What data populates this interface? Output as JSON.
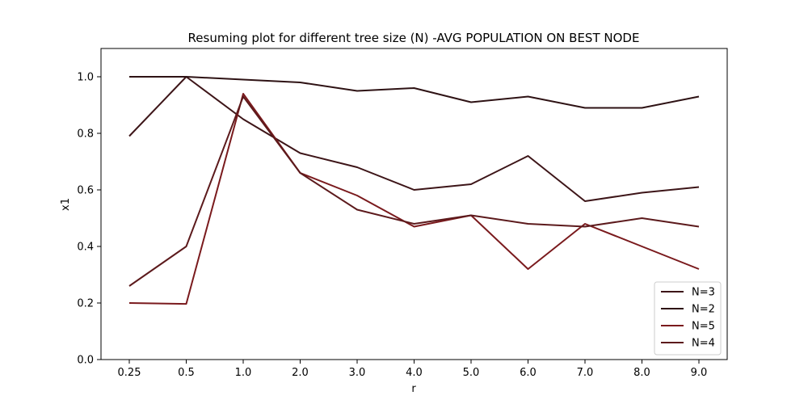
{
  "chart_data": {
    "type": "line",
    "title": "Resuming plot for different tree size (N) -AVG POPULATION ON BEST NODE",
    "xlabel": "r",
    "ylabel": "x1",
    "categories": [
      "0.25",
      "0.5",
      "1.0",
      "2.0",
      "3.0",
      "4.0",
      "5.0",
      "6.0",
      "7.0",
      "8.0",
      "9.0"
    ],
    "ylim": [
      0,
      1.1
    ],
    "yticks": [
      "0.0",
      "0.2",
      "0.4",
      "0.6",
      "0.8",
      "1.0"
    ],
    "grid": false,
    "legend_position": "lower-right",
    "series": [
      {
        "name": "N=3",
        "color": "#3d1518",
        "values": [
          0.79,
          1.0,
          0.85,
          0.73,
          0.68,
          0.6,
          0.62,
          0.72,
          0.56,
          0.59,
          0.61
        ]
      },
      {
        "name": "N=2",
        "color": "#2e1214",
        "values": [
          1.0,
          1.0,
          0.99,
          0.98,
          0.95,
          0.96,
          0.91,
          0.93,
          0.89,
          0.89,
          0.93
        ]
      },
      {
        "name": "N=5",
        "color": "#7a1a1d",
        "values": [
          0.2,
          0.197,
          0.94,
          0.66,
          0.58,
          0.47,
          0.51,
          0.32,
          0.48,
          0.4,
          0.32
        ]
      },
      {
        "name": "N=4",
        "color": "#5c1a1c",
        "values": [
          0.26,
          0.4,
          0.93,
          0.66,
          0.53,
          0.48,
          0.51,
          0.48,
          0.47,
          0.5,
          0.47
        ]
      }
    ]
  }
}
